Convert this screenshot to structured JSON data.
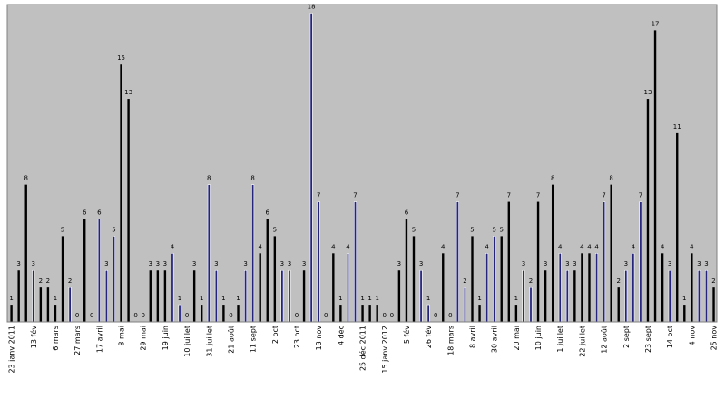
{
  "chart_data": {
    "type": "bar",
    "title": "",
    "xlabel": "",
    "ylabel": "",
    "ylim": [
      0,
      18.5
    ],
    "grid": false,
    "legend": "none",
    "colors": {
      "plot_background": "#c0c0c0",
      "bar_primary": "#000000",
      "bar_secondary": "#24247f"
    },
    "values": [
      1,
      3,
      8,
      3,
      2,
      2,
      1,
      5,
      2,
      0,
      6,
      0,
      6,
      3,
      5,
      15,
      13,
      0,
      0,
      3,
      3,
      3,
      4,
      1,
      0,
      3,
      1,
      8,
      3,
      1,
      0,
      1,
      3,
      8,
      4,
      6,
      5,
      3,
      3,
      0,
      3,
      18,
      7,
      0,
      4,
      1,
      4,
      7,
      1,
      1,
      1,
      0,
      0,
      3,
      6,
      5,
      3,
      1,
      0,
      4,
      0,
      7,
      2,
      5,
      1,
      4,
      5,
      5,
      7,
      1,
      3,
      2,
      7,
      3,
      8,
      4,
      3,
      3,
      4,
      4,
      4,
      7,
      8,
      2,
      3,
      4,
      7,
      13,
      17,
      4,
      3,
      11,
      1,
      4,
      3,
      3,
      2
    ],
    "bar_color_index": [
      0,
      0,
      0,
      1,
      0,
      0,
      0,
      0,
      1,
      0,
      0,
      0,
      1,
      1,
      1,
      0,
      0,
      0,
      0,
      0,
      0,
      0,
      1,
      1,
      0,
      0,
      0,
      1,
      1,
      0,
      0,
      0,
      1,
      1,
      0,
      0,
      0,
      1,
      1,
      0,
      0,
      1,
      1,
      0,
      0,
      0,
      1,
      1,
      0,
      0,
      0,
      0,
      0,
      0,
      0,
      0,
      1,
      1,
      0,
      0,
      0,
      1,
      1,
      0,
      0,
      1,
      1,
      0,
      0,
      0,
      1,
      1,
      0,
      0,
      0,
      1,
      1,
      0,
      0,
      0,
      1,
      1,
      0,
      0,
      1,
      1,
      1,
      0,
      0,
      0,
      1,
      0,
      0,
      0,
      1,
      1,
      0
    ],
    "tick_labels": [
      {
        "label": "23 janv 2011",
        "index": 0
      },
      {
        "label": "13 fév",
        "index": 3
      },
      {
        "label": "6 mars",
        "index": 6
      },
      {
        "label": "27 mars",
        "index": 9
      },
      {
        "label": "17 avril",
        "index": 12
      },
      {
        "label": "8 mai",
        "index": 15
      },
      {
        "label": "29 mai",
        "index": 18
      },
      {
        "label": "19 juin",
        "index": 21
      },
      {
        "label": "10 juillet",
        "index": 24
      },
      {
        "label": "31 juillet",
        "index": 27
      },
      {
        "label": "21 août",
        "index": 30
      },
      {
        "label": "11 sept",
        "index": 33
      },
      {
        "label": "2 oct",
        "index": 36
      },
      {
        "label": "23 oct",
        "index": 39
      },
      {
        "label": "13 nov",
        "index": 42
      },
      {
        "label": "4 déc",
        "index": 45
      },
      {
        "label": "25 déc 2011",
        "index": 48
      },
      {
        "label": "15 janv 2012",
        "index": 51
      },
      {
        "label": "5 fév",
        "index": 54
      },
      {
        "label": "26 fév",
        "index": 57
      },
      {
        "label": "18 mars",
        "index": 60
      },
      {
        "label": "8 avril",
        "index": 63
      },
      {
        "label": "30 avril",
        "index": 66
      },
      {
        "label": "20 mai",
        "index": 69
      },
      {
        "label": "10 juin",
        "index": 72
      },
      {
        "label": "1 juillet",
        "index": 75
      },
      {
        "label": "22 juillet",
        "index": 78
      },
      {
        "label": "12 août",
        "index": 81
      },
      {
        "label": "2 sept",
        "index": 84
      },
      {
        "label": "23 sept",
        "index": 87
      },
      {
        "label": "14 oct",
        "index": 90
      },
      {
        "label": "4 nov",
        "index": 93
      },
      {
        "label": "25 nov",
        "index": 96
      }
    ]
  }
}
